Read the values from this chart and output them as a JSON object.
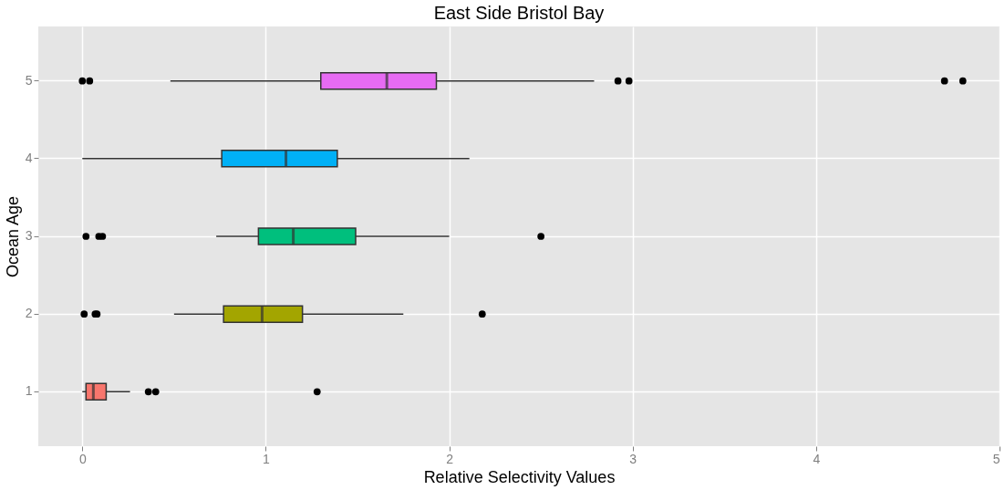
{
  "chart_data": {
    "type": "box",
    "title": "East Side Bristol Bay",
    "xlabel": "Relative Selectivity Values",
    "ylabel": "Ocean Age",
    "orientation": "horizontal",
    "categories": [
      "5",
      "4",
      "3",
      "2",
      "1"
    ],
    "colors": [
      "#e76bf3",
      "#00b0f6",
      "#00bf7d",
      "#a3a500",
      "#f8766d"
    ],
    "boxes": [
      {
        "low": 0.48,
        "q1": 1.3,
        "median": 1.66,
        "q3": 1.93,
        "high": 2.79,
        "outliers": [
          0.0,
          0.04,
          2.92,
          2.98,
          4.7,
          4.8
        ]
      },
      {
        "low": 0.0,
        "q1": 0.76,
        "median": 1.11,
        "q3": 1.39,
        "high": 2.11
      },
      {
        "low": 0.73,
        "q1": 0.96,
        "median": 1.15,
        "q3": 1.49,
        "high": 2.0,
        "outliers": [
          0.02,
          0.09,
          0.11,
          2.5
        ]
      },
      {
        "low": 0.5,
        "q1": 0.77,
        "median": 0.98,
        "q3": 1.2,
        "high": 1.75,
        "outliers": [
          0.01,
          0.07,
          0.08,
          2.18
        ]
      },
      {
        "low": 0.0,
        "q1": 0.02,
        "median": 0.06,
        "q3": 0.13,
        "high": 0.26,
        "outliers": [
          0.36,
          0.4,
          1.28
        ]
      }
    ],
    "xlim": [
      -0.24,
      5.0
    ],
    "xticks": [
      0,
      1,
      2,
      3,
      4,
      5
    ],
    "grid": true,
    "legend": false
  }
}
